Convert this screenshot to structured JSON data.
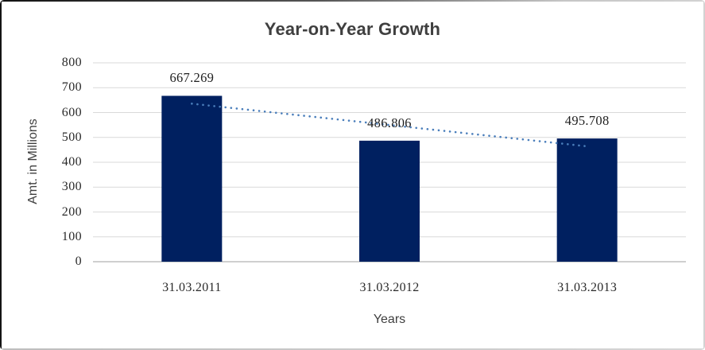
{
  "chart_data": {
    "type": "bar",
    "title": "Year-on-Year Growth",
    "categories": [
      "31.03.2011",
      "31.03.2012",
      "31.03.2013"
    ],
    "values": [
      667.269,
      486.806,
      495.708
    ],
    "data_labels": [
      "667.269",
      "486.806",
      "495.708"
    ],
    "xlabel": "Years",
    "ylabel": "Amt. in Millions",
    "ylim": [
      0,
      800
    ],
    "yticks": [
      "800",
      "700",
      "600",
      "500",
      "400",
      "300",
      "200",
      "100",
      "0"
    ],
    "grid": "horizontal gridlines",
    "legend_position": "none",
    "trendline": {
      "type": "linear",
      "style": "dotted",
      "span": "first-to-last-category"
    },
    "colors": {
      "bar": "#002060",
      "trendline": "#4a7ebb",
      "gridline": "#d9d9d9",
      "axis_line": "#bfbfbf",
      "title_text": "#3f3f3f",
      "axis_title_text": "#3f3f3f",
      "tick_label_text": "#2a2a2a",
      "data_label_text": "#1f1f1f",
      "background": "#ffffff"
    }
  }
}
